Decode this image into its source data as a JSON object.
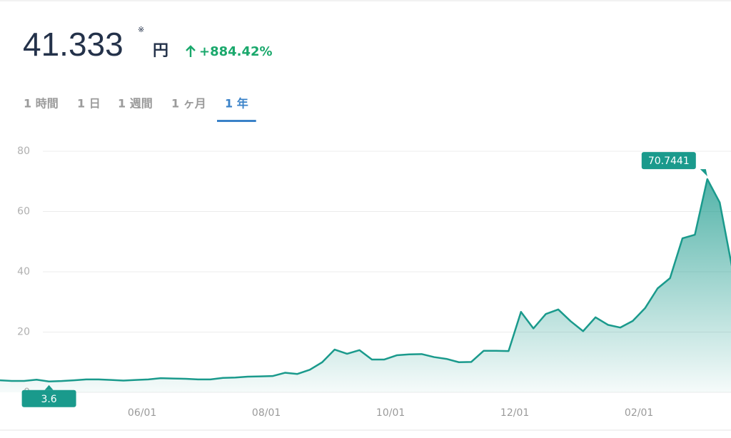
{
  "header": {
    "price": "41.333",
    "note": "※",
    "unit": "円",
    "change": "+884.42%"
  },
  "tabs": [
    {
      "label": "1 時間",
      "active": false
    },
    {
      "label": "1 日",
      "active": false
    },
    {
      "label": "1 週間",
      "active": false
    },
    {
      "label": "1 ヶ月",
      "active": false
    },
    {
      "label": "1 年",
      "active": true
    }
  ],
  "chart_data": {
    "type": "area",
    "color": "#1a9a8c",
    "categories": [
      null,
      null,
      null,
      null,
      null,
      null,
      null,
      null,
      null,
      null,
      null,
      null,
      "06/01",
      null,
      null,
      null,
      null,
      null,
      null,
      null,
      null,
      null,
      "08/01",
      null,
      null,
      null,
      null,
      null,
      null,
      null,
      null,
      null,
      "10/01",
      null,
      null,
      null,
      null,
      null,
      null,
      null,
      null,
      null,
      "12/01",
      null,
      null,
      null,
      null,
      null,
      null,
      null,
      null,
      null,
      "02/01",
      null,
      null,
      null,
      null,
      null,
      null,
      null
    ],
    "values": [
      4.0,
      3.8,
      3.8,
      4.2,
      3.6,
      3.7452,
      4.0,
      4.3,
      4.3,
      4.1,
      3.9,
      4.1,
      4.3,
      4.7,
      4.6,
      4.5,
      4.3,
      4.3,
      4.8,
      4.9,
      5.2,
      5.3,
      5.4,
      6.5,
      6.1,
      7.5,
      10.0,
      14.2,
      12.8,
      14.0,
      10.9,
      10.9,
      12.3,
      12.6,
      12.7,
      11.7,
      11.1,
      10.0,
      10.1,
      13.8,
      13.8,
      13.7,
      26.7,
      21.2,
      26.0,
      27.5,
      23.6,
      20.3,
      24.9,
      22.4,
      21.5,
      23.7,
      28.0,
      34.5,
      37.9,
      51.1,
      52.3,
      70.7441,
      63.0,
      41.333
    ],
    "ylim": [
      0,
      80
    ],
    "yticks": [
      0,
      20,
      40,
      60,
      80
    ],
    "grid": true
  }
}
